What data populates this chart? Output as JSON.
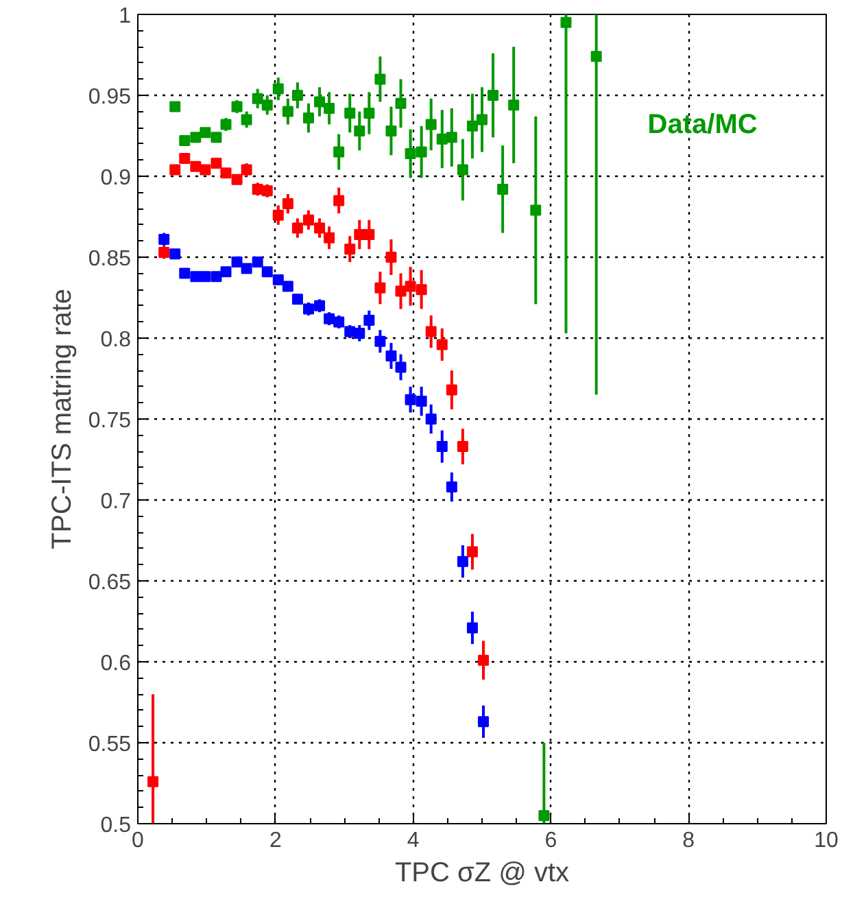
{
  "chart_data": {
    "type": "scatter",
    "xlabel": "TPC σZ @ vtx",
    "ylabel": "TPC-ITS matring rate",
    "xlim": [
      0,
      10
    ],
    "ylim": [
      0.5,
      1.0
    ],
    "xticks": [
      0,
      2,
      4,
      6,
      8,
      10
    ],
    "yticks": [
      0.5,
      0.55,
      0.6,
      0.65,
      0.7,
      0.75,
      0.8,
      0.85,
      0.9,
      0.95,
      1
    ],
    "grid": true,
    "marker": "square",
    "series": [
      {
        "name": "Data/MC",
        "color": "#009900",
        "x": [
          0.54,
          0.68,
          0.84,
          0.98,
          1.14,
          1.28,
          1.44,
          1.58,
          1.74,
          1.88,
          2.04,
          2.18,
          2.32,
          2.48,
          2.64,
          2.78,
          2.92,
          3.08,
          3.22,
          3.36,
          3.52,
          3.68,
          3.82,
          3.96,
          4.12,
          4.26,
          4.42,
          4.56,
          4.72,
          4.86,
          5.0,
          5.16,
          5.3,
          5.46,
          5.78,
          5.9,
          6.22,
          6.66
        ],
        "values": [
          0.943,
          0.922,
          0.924,
          0.927,
          0.924,
          0.932,
          0.943,
          0.935,
          0.948,
          0.944,
          0.954,
          0.94,
          0.95,
          0.936,
          0.946,
          0.942,
          0.915,
          0.939,
          0.928,
          0.939,
          0.96,
          0.928,
          0.945,
          0.914,
          0.915,
          0.932,
          0.923,
          0.924,
          0.904,
          0.931,
          0.935,
          0.95,
          0.892,
          0.944,
          0.879,
          0.505,
          0.995,
          0.974
        ],
        "errors": [
          0.003,
          0.003,
          0.003,
          0.003,
          0.003,
          0.004,
          0.004,
          0.005,
          0.006,
          0.006,
          0.007,
          0.008,
          0.008,
          0.009,
          0.009,
          0.01,
          0.011,
          0.012,
          0.012,
          0.013,
          0.014,
          0.015,
          0.015,
          0.015,
          0.016,
          0.016,
          0.018,
          0.018,
          0.019,
          0.02,
          0.02,
          0.026,
          0.027,
          0.036,
          0.058,
          [
            0.5,
            0.55
          ],
          [
            0.803,
            1.0
          ],
          [
            0.765,
            1.0
          ]
        ]
      },
      {
        "color": "#ff0000",
        "x": [
          0.22,
          0.38,
          0.54,
          0.68,
          0.84,
          0.98,
          1.14,
          1.28,
          1.44,
          1.58,
          1.74,
          1.88,
          2.04,
          2.18,
          2.32,
          2.48,
          2.64,
          2.78,
          2.92,
          3.08,
          3.22,
          3.36,
          3.52,
          3.68,
          3.82,
          3.96,
          4.12,
          4.26,
          4.42,
          4.56,
          4.72,
          4.86,
          5.02
        ],
        "values": [
          0.526,
          0.853,
          0.904,
          0.911,
          0.906,
          0.904,
          0.908,
          0.902,
          0.898,
          0.904,
          0.892,
          0.891,
          0.876,
          0.883,
          0.868,
          0.873,
          0.868,
          0.862,
          0.885,
          0.855,
          0.864,
          0.864,
          0.831,
          0.85,
          0.829,
          0.832,
          0.83,
          0.804,
          0.796,
          0.768,
          0.733,
          0.668,
          0.601
        ],
        "errors": [
          [
            0.5,
            0.58
          ],
          0.004,
          0.003,
          0.003,
          0.003,
          0.003,
          0.003,
          0.003,
          0.003,
          0.004,
          0.004,
          0.004,
          0.006,
          0.006,
          0.006,
          0.006,
          0.006,
          0.007,
          0.008,
          0.008,
          0.009,
          0.009,
          0.01,
          0.011,
          0.011,
          0.012,
          0.012,
          0.01,
          0.01,
          0.012,
          0.011,
          0.011,
          0.012
        ]
      },
      {
        "color": "#0000ff",
        "x": [
          0.38,
          0.54,
          0.68,
          0.84,
          0.98,
          1.14,
          1.28,
          1.44,
          1.58,
          1.74,
          1.88,
          2.04,
          2.18,
          2.32,
          2.48,
          2.64,
          2.78,
          2.92,
          3.08,
          3.22,
          3.36,
          3.52,
          3.68,
          3.82,
          3.96,
          4.12,
          4.26,
          4.42,
          4.56,
          4.72,
          4.86,
          5.02
        ],
        "values": [
          0.861,
          0.852,
          0.84,
          0.838,
          0.838,
          0.838,
          0.841,
          0.847,
          0.843,
          0.847,
          0.841,
          0.836,
          0.832,
          0.824,
          0.818,
          0.82,
          0.812,
          0.81,
          0.804,
          0.803,
          0.811,
          0.798,
          0.789,
          0.782,
          0.762,
          0.761,
          0.75,
          0.733,
          0.708,
          0.662,
          0.621,
          0.563
        ],
        "errors": [
          0.004,
          0.003,
          0.002,
          0.002,
          0.002,
          0.002,
          0.002,
          0.002,
          0.002,
          0.002,
          0.003,
          0.003,
          0.003,
          0.003,
          0.004,
          0.004,
          0.004,
          0.004,
          0.004,
          0.005,
          0.006,
          0.007,
          0.008,
          0.008,
          0.008,
          0.009,
          0.009,
          0.01,
          0.009,
          0.01,
          0.01,
          0.01
        ]
      }
    ]
  }
}
